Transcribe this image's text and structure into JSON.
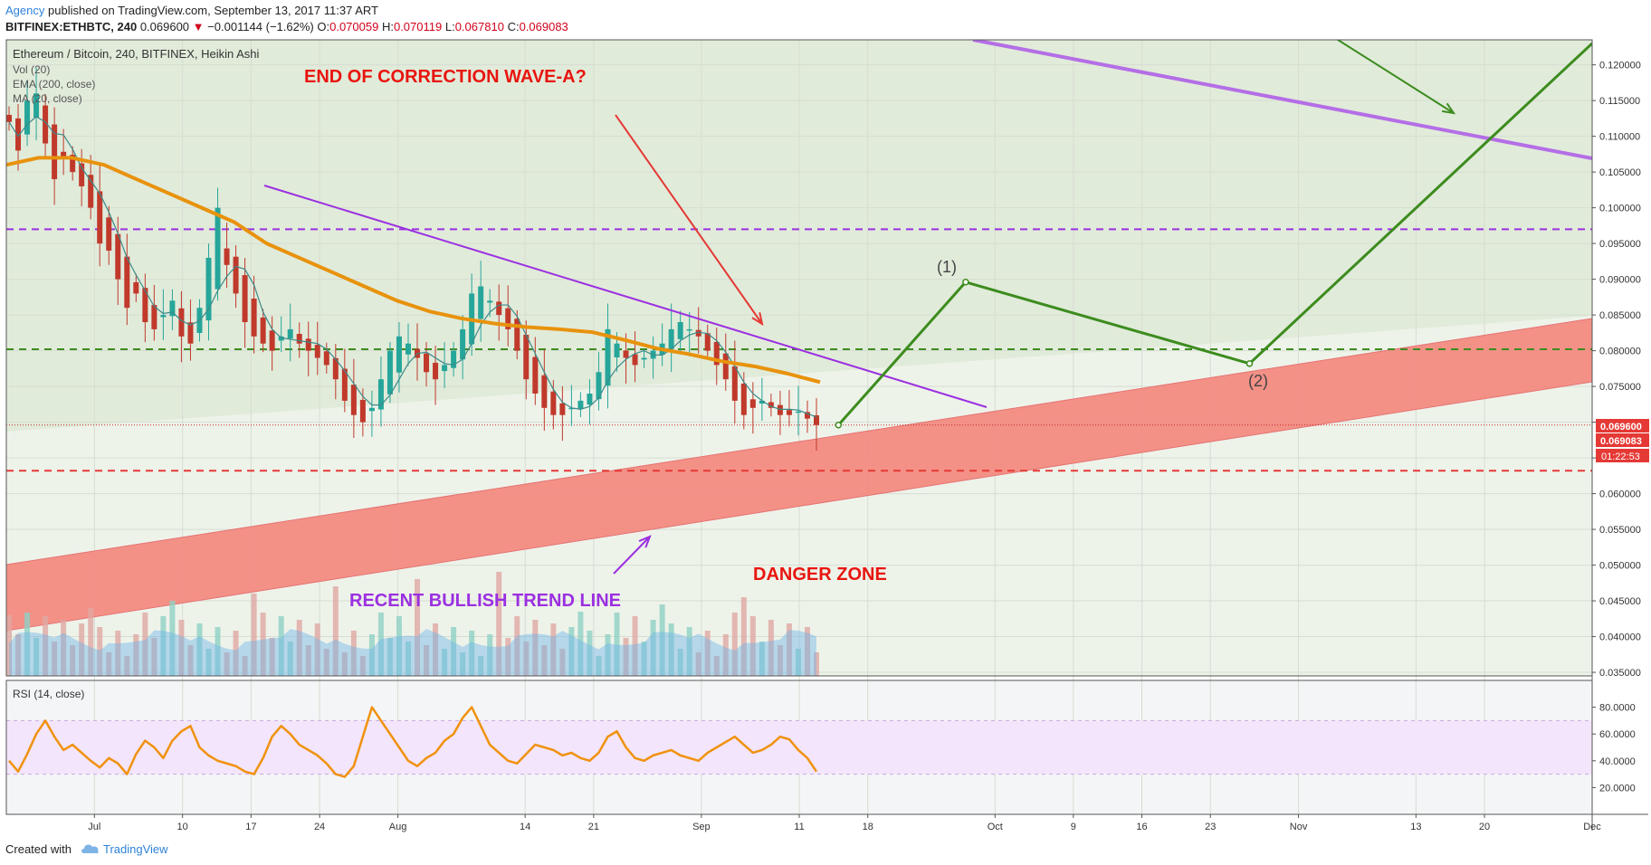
{
  "header": {
    "author": "Agency",
    "published": "published on TradingView.com, September 13, 2017 11:37 ART",
    "symbol_line": "BITFINEX:ETHBTC, 240",
    "last": "0.069600",
    "change": "−0.001144 (−1.62%)",
    "o_label": "O:",
    "o": "0.070059",
    "h_label": "H:",
    "h": "0.070119",
    "l_label": "L:",
    "l": "0.067810",
    "c_label": "C:",
    "c": "0.069083"
  },
  "legend": {
    "title": "Ethereum / Bitcoin, 240, BITFINEX, Heikin Ashi",
    "items": [
      "Vol (20)",
      "EMA (200, close)",
      "MA (20, close)"
    ]
  },
  "annotations": {
    "end_correction": "END OF CORRECTION WAVE-A?",
    "danger_zone": "DANGER ZONE",
    "bullish_trend": "RECENT BULLISH TREND LINE",
    "wave1": "(1)",
    "wave2": "(2)"
  },
  "price_axis": {
    "ticks": [
      "0.120000",
      "0.115000",
      "0.110000",
      "0.105000",
      "0.100000",
      "0.095000",
      "0.090000",
      "0.085000",
      "0.080000",
      "0.075000",
      "0.070000",
      "0.065000",
      "0.060000",
      "0.055000",
      "0.050000",
      "0.045000",
      "0.040000",
      "0.035000"
    ],
    "last_price_tag": "0.069600",
    "close_tag": "0.069083",
    "countdown_tag": "01:22:53"
  },
  "time_axis": {
    "labels": [
      "Jul",
      "10",
      "17",
      "24",
      "Aug",
      "14",
      "21",
      "Sep",
      "11",
      "18",
      "Oct",
      "9",
      "16",
      "23",
      "Nov",
      "13",
      "20",
      "Dec"
    ]
  },
  "rsi": {
    "title": "RSI (14, close)",
    "ticks": [
      "80.0000",
      "60.0000",
      "40.0000",
      "20.0000"
    ]
  },
  "footer": {
    "created_with": "Created with",
    "brand": "TradingView"
  },
  "colors": {
    "up": "#26a69a",
    "down": "#c0392b",
    "ema": "#e8920c",
    "ma": "#3a8a8a",
    "trendline": "#9b30e0",
    "channel": "#f28b82",
    "projection": "#3c8c1e",
    "res_purple": "#b46ee6",
    "dash_purple": "#9b30e0",
    "dash_green": "#3c8c1e",
    "dash_red": "#e53935",
    "rsi_line": "#f0920f",
    "rsi_band": "#f3e5fb"
  },
  "chart_data": {
    "type": "candlestick",
    "title": "Ethereum / Bitcoin, 240, BITFINEX, Heikin Ashi",
    "x_start": "2017-06-22",
    "x_end": "2017-12-01",
    "ylim": [
      0.0345,
      0.1235
    ],
    "closes": [
      0.112,
      0.108,
      0.115,
      0.116,
      0.109,
      0.104,
      0.107,
      0.105,
      0.103,
      0.1,
      0.095,
      0.094,
      0.09,
      0.086,
      0.088,
      0.084,
      0.083,
      0.085,
      0.087,
      0.082,
      0.081,
      0.086,
      0.093,
      0.1,
      0.092,
      0.088,
      0.084,
      0.082,
      0.081,
      0.08,
      0.082,
      0.083,
      0.081,
      0.08,
      0.079,
      0.078,
      0.076,
      0.073,
      0.071,
      0.07,
      0.072,
      0.076,
      0.08,
      0.082,
      0.081,
      0.079,
      0.077,
      0.076,
      0.078,
      0.08,
      0.083,
      0.088,
      0.089,
      0.087,
      0.085,
      0.083,
      0.08,
      0.076,
      0.074,
      0.072,
      0.071,
      0.071,
      0.072,
      0.073,
      0.074,
      0.077,
      0.083,
      0.081,
      0.079,
      0.078,
      0.079,
      0.08,
      0.081,
      0.083,
      0.084,
      0.083,
      0.082,
      0.08,
      0.078,
      0.076,
      0.073,
      0.071,
      0.072,
      0.073,
      0.072,
      0.071,
      0.071,
      0.0715,
      0.0705,
      0.0696
    ],
    "ema200": [
      0.106,
      0.107,
      0.107,
      0.106,
      0.104,
      0.102,
      0.1,
      0.098,
      0.095,
      0.093,
      0.091,
      0.089,
      0.087,
      0.0855,
      0.0845,
      0.0838,
      0.0833,
      0.083,
      0.0826,
      0.0815,
      0.0803,
      0.0795,
      0.0785,
      0.0778,
      0.0768,
      0.0756
    ],
    "rsi14": [
      40,
      32,
      45,
      60,
      70,
      58,
      48,
      52,
      46,
      40,
      35,
      42,
      38,
      30,
      45,
      55,
      50,
      42,
      55,
      62,
      66,
      50,
      44,
      40,
      38,
      36,
      32,
      30,
      42,
      58,
      66,
      60,
      52,
      48,
      44,
      38,
      30,
      28,
      36,
      58,
      80,
      70,
      60,
      50,
      40,
      36,
      42,
      46,
      55,
      60,
      72,
      80,
      66,
      52,
      46,
      40,
      38,
      45,
      52,
      50,
      48,
      44,
      46,
      42,
      40,
      46,
      58,
      62,
      50,
      42,
      40,
      44,
      46,
      48,
      44,
      42,
      40,
      46,
      50,
      54,
      58,
      52,
      46,
      48,
      52,
      58,
      56,
      48,
      42,
      32
    ],
    "levels": {
      "dashed_purple": 0.097,
      "dashed_green": 0.0802,
      "dashed_red": 0.0632
    },
    "projection": [
      [
        "2017-09-15",
        0.0696
      ],
      [
        "2017-09-28",
        0.0896
      ],
      [
        "2017-10-27",
        0.0782
      ],
      [
        "2017-12-01",
        0.123
      ]
    ],
    "rsi_ylim": [
      0,
      100
    ],
    "rsi_levels": [
      70,
      30
    ]
  }
}
